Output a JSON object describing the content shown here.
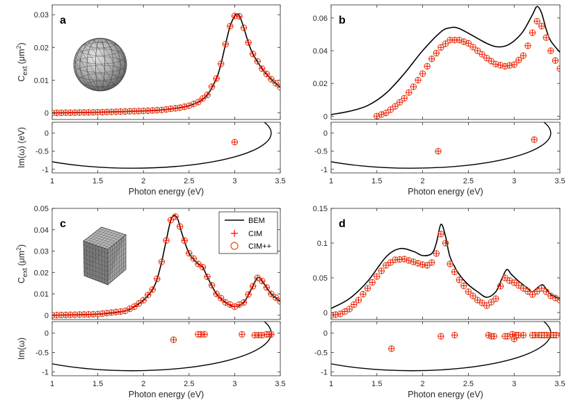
{
  "chart_data": [
    {
      "panel_label": "a",
      "type": "scatter",
      "xlim": [
        1,
        3.5
      ],
      "x_ticks": [
        "1",
        "1.5",
        "2",
        "2.5",
        "3",
        "3.5"
      ],
      "xlabel": "Photon energy (eV)",
      "top": {
        "ylabel_main": "C",
        "ylabel_sub": "ext",
        "ylabel_unit": "(μm",
        "ylabel_exp": "2",
        "ylabel_close": ")",
        "ylim": [
          -0.002,
          0.033
        ],
        "y_ticks": [
          0,
          0.01,
          0.02,
          0.03
        ],
        "y_tick_labels": [
          "0",
          "0.01",
          "0.02",
          "0.03"
        ],
        "bem_curve": [
          [
            1.0,
            0.0
          ],
          [
            1.5,
            0.0002
          ],
          [
            2.0,
            0.0006
          ],
          [
            2.2,
            0.0009
          ],
          [
            2.4,
            0.0016
          ],
          [
            2.5,
            0.0022
          ],
          [
            2.6,
            0.0033
          ],
          [
            2.7,
            0.0055
          ],
          [
            2.8,
            0.0105
          ],
          [
            2.85,
            0.015
          ],
          [
            2.9,
            0.021
          ],
          [
            2.95,
            0.0265
          ],
          [
            3.0,
            0.0296
          ],
          [
            3.03,
            0.0302
          ],
          [
            3.06,
            0.0292
          ],
          [
            3.1,
            0.026
          ],
          [
            3.15,
            0.0215
          ],
          [
            3.2,
            0.018
          ],
          [
            3.3,
            0.0135
          ],
          [
            3.4,
            0.0103
          ],
          [
            3.5,
            0.0078
          ]
        ],
        "cim_x_range": [
          1.0,
          3.5
        ],
        "cim_step": 0.05,
        "cim_matches_bem": true
      },
      "bottom": {
        "ylabel": "Im(ω) (eV)",
        "ylim": [
          -1.1,
          0.3
        ],
        "y_ticks": [
          0,
          -0.5,
          -1
        ],
        "y_tick_labels": [
          "0",
          "-0.5",
          "-1"
        ],
        "contour": {
          "center": [
            1.88,
            0
          ],
          "radii": [
            1.52,
            0.97
          ]
        },
        "poles": [
          [
            3.0,
            -0.25
          ]
        ]
      },
      "inset": "sphere"
    },
    {
      "panel_label": "b",
      "type": "line",
      "xlim": [
        1,
        3.5
      ],
      "x_ticks": [
        "1",
        "1.5",
        "2",
        "2.5",
        "3",
        "3.5"
      ],
      "xlabel": "Photon energy (eV)",
      "top": {
        "ylim": [
          -0.002,
          0.068
        ],
        "y_ticks": [
          0,
          0.02,
          0.04,
          0.06
        ],
        "y_tick_labels": [
          "0",
          "0.02",
          "0.04",
          "0.06"
        ],
        "bem_curve": [
          [
            1.0,
            0.001
          ],
          [
            1.2,
            0.003
          ],
          [
            1.4,
            0.0065
          ],
          [
            1.6,
            0.014
          ],
          [
            1.8,
            0.026
          ],
          [
            2.0,
            0.04
          ],
          [
            2.2,
            0.0515
          ],
          [
            2.3,
            0.054
          ],
          [
            2.4,
            0.0535
          ],
          [
            2.6,
            0.0475
          ],
          [
            2.7,
            0.0445
          ],
          [
            2.8,
            0.0425
          ],
          [
            2.9,
            0.0428
          ],
          [
            3.0,
            0.046
          ],
          [
            3.1,
            0.052
          ],
          [
            3.2,
            0.062
          ],
          [
            3.25,
            0.067
          ],
          [
            3.3,
            0.063
          ],
          [
            3.35,
            0.053
          ],
          [
            3.4,
            0.046
          ],
          [
            3.5,
            0.039
          ]
        ],
        "cim_curve": [
          [
            1.5,
            0.0
          ],
          [
            1.6,
            0.002
          ],
          [
            1.7,
            0.006
          ],
          [
            1.8,
            0.011
          ],
          [
            1.9,
            0.018
          ],
          [
            2.0,
            0.026
          ],
          [
            2.1,
            0.035
          ],
          [
            2.2,
            0.042
          ],
          [
            2.3,
            0.0465
          ],
          [
            2.4,
            0.0465
          ],
          [
            2.5,
            0.0445
          ],
          [
            2.6,
            0.04
          ],
          [
            2.7,
            0.0355
          ],
          [
            2.8,
            0.0318
          ],
          [
            2.9,
            0.0305
          ],
          [
            3.0,
            0.0315
          ],
          [
            3.1,
            0.037
          ],
          [
            3.15,
            0.043
          ],
          [
            3.2,
            0.051
          ],
          [
            3.25,
            0.058
          ],
          [
            3.3,
            0.055
          ],
          [
            3.35,
            0.048
          ],
          [
            3.4,
            0.04
          ],
          [
            3.45,
            0.034
          ],
          [
            3.5,
            0.029
          ]
        ],
        "cim_x_range": [
          1.5,
          3.5
        ],
        "cim_step": 0.05
      },
      "bottom": {
        "ylim": [
          -1.1,
          0.3
        ],
        "y_ticks": [
          0,
          -0.5,
          -1
        ],
        "y_tick_labels": [
          "0",
          "-0.5",
          "-1"
        ],
        "contour": {
          "center": [
            1.88,
            0
          ],
          "radii": [
            1.52,
            0.97
          ]
        },
        "poles": [
          [
            2.17,
            -0.5
          ],
          [
            3.22,
            -0.18
          ]
        ]
      }
    },
    {
      "panel_label": "c",
      "type": "scatter",
      "xlim": [
        1,
        3.5
      ],
      "x_ticks": [
        "1",
        "1.5",
        "2",
        "2.5",
        "3",
        "3.5"
      ],
      "xlabel": "Photon energy (eV)",
      "top": {
        "ylabel_main": "C",
        "ylabel_sub": "ext",
        "ylabel_unit": "(μm",
        "ylabel_exp": "2",
        "ylabel_close": ")",
        "ylim": [
          -0.002,
          0.05
        ],
        "y_ticks": [
          0,
          0.01,
          0.02,
          0.03,
          0.04,
          0.05
        ],
        "y_tick_labels": [
          "0",
          "0.01",
          "0.02",
          "0.03",
          "0.04",
          "0.05"
        ],
        "bem_curve": [
          [
            1.0,
            0.0
          ],
          [
            1.5,
            0.0005
          ],
          [
            1.8,
            0.002
          ],
          [
            1.9,
            0.004
          ],
          [
            2.0,
            0.007
          ],
          [
            2.1,
            0.012
          ],
          [
            2.15,
            0.017
          ],
          [
            2.2,
            0.025
          ],
          [
            2.25,
            0.035
          ],
          [
            2.3,
            0.0445
          ],
          [
            2.34,
            0.0467
          ],
          [
            2.38,
            0.0445
          ],
          [
            2.42,
            0.0385
          ],
          [
            2.5,
            0.029
          ],
          [
            2.6,
            0.024
          ],
          [
            2.65,
            0.0225
          ],
          [
            2.7,
            0.018
          ],
          [
            2.8,
            0.01
          ],
          [
            2.9,
            0.006
          ],
          [
            3.0,
            0.004
          ],
          [
            3.1,
            0.006
          ],
          [
            3.18,
            0.012
          ],
          [
            3.25,
            0.0175
          ],
          [
            3.3,
            0.016
          ],
          [
            3.4,
            0.01
          ],
          [
            3.5,
            0.0065
          ]
        ],
        "cim_x_range": [
          1.0,
          3.5
        ],
        "cim_step": 0.05,
        "cim_matches_bem": true
      },
      "bottom": {
        "ylabel": "Im(ω)",
        "ylim": [
          -1.1,
          0.3
        ],
        "y_ticks": [
          0,
          -0.5,
          -1
        ],
        "y_tick_labels": [
          "0",
          "-0.5",
          "-1"
        ],
        "contour": {
          "center": [
            1.88,
            0
          ],
          "radii": [
            1.52,
            0.97
          ]
        },
        "poles": [
          [
            2.33,
            -0.17
          ],
          [
            2.6,
            -0.03
          ],
          [
            2.63,
            -0.03
          ],
          [
            2.67,
            -0.03
          ],
          [
            3.08,
            -0.03
          ],
          [
            3.22,
            -0.05
          ],
          [
            3.26,
            -0.05
          ],
          [
            3.3,
            -0.05
          ],
          [
            3.35,
            -0.03
          ],
          [
            3.38,
            -0.03
          ],
          [
            3.4,
            -0.03
          ]
        ]
      },
      "legend": {
        "entries": [
          "BEM",
          "CIM",
          "CIM++"
        ],
        "position": "top-right"
      },
      "inset": "cube"
    },
    {
      "panel_label": "d",
      "type": "line",
      "xlim": [
        1,
        3.5
      ],
      "x_ticks": [
        "1",
        "1.5",
        "2",
        "2.5",
        "3",
        "3.5"
      ],
      "xlabel": "Photon energy (eV)",
      "top": {
        "ylim": [
          -0.01,
          0.15
        ],
        "y_ticks": [
          0,
          0.05,
          0.1,
          0.15
        ],
        "y_tick_labels": [
          "0",
          "0.05",
          "0.1",
          "0.15"
        ],
        "bem_curve": [
          [
            1.0,
            0.006
          ],
          [
            1.2,
            0.02
          ],
          [
            1.4,
            0.045
          ],
          [
            1.6,
            0.08
          ],
          [
            1.75,
            0.092
          ],
          [
            1.9,
            0.088
          ],
          [
            2.0,
            0.082
          ],
          [
            2.1,
            0.085
          ],
          [
            2.15,
            0.1
          ],
          [
            2.2,
            0.127
          ],
          [
            2.25,
            0.11
          ],
          [
            2.3,
            0.08
          ],
          [
            2.4,
            0.055
          ],
          [
            2.5,
            0.04
          ],
          [
            2.6,
            0.03
          ],
          [
            2.7,
            0.022
          ],
          [
            2.8,
            0.03
          ],
          [
            2.87,
            0.05
          ],
          [
            2.92,
            0.062
          ],
          [
            2.97,
            0.055
          ],
          [
            3.05,
            0.045
          ],
          [
            3.15,
            0.035
          ],
          [
            3.2,
            0.03
          ],
          [
            3.3,
            0.04
          ],
          [
            3.35,
            0.034
          ],
          [
            3.4,
            0.026
          ],
          [
            3.5,
            0.02
          ]
        ],
        "cim_curve": [
          [
            1.0,
            -0.004
          ],
          [
            1.1,
            -0.002
          ],
          [
            1.2,
            0.005
          ],
          [
            1.3,
            0.018
          ],
          [
            1.4,
            0.035
          ],
          [
            1.5,
            0.052
          ],
          [
            1.6,
            0.068
          ],
          [
            1.7,
            0.076
          ],
          [
            1.8,
            0.077
          ],
          [
            1.9,
            0.073
          ],
          [
            2.0,
            0.069
          ],
          [
            2.05,
            0.068
          ],
          [
            2.1,
            0.072
          ],
          [
            2.15,
            0.085
          ],
          [
            2.2,
            0.113
          ],
          [
            2.25,
            0.1
          ],
          [
            2.3,
            0.07
          ],
          [
            2.4,
            0.047
          ],
          [
            2.5,
            0.03
          ],
          [
            2.6,
            0.018
          ],
          [
            2.7,
            0.01
          ],
          [
            2.8,
            0.02
          ],
          [
            2.85,
            0.038
          ],
          [
            2.9,
            0.05
          ],
          [
            2.95,
            0.046
          ],
          [
            3.0,
            0.043
          ],
          [
            3.1,
            0.035
          ],
          [
            3.2,
            0.026
          ],
          [
            3.3,
            0.035
          ],
          [
            3.35,
            0.03
          ],
          [
            3.4,
            0.024
          ],
          [
            3.5,
            0.018
          ]
        ],
        "cim_x_range": [
          1.0,
          3.5
        ],
        "cim_step": 0.05
      },
      "bottom": {
        "ylim": [
          -1.1,
          0.3
        ],
        "y_ticks": [
          0,
          -0.5,
          -1
        ],
        "y_tick_labels": [
          "0",
          "-0.5",
          "-1"
        ],
        "contour": {
          "center": [
            1.88,
            0
          ],
          "radii": [
            1.52,
            0.97
          ]
        },
        "poles": [
          [
            1.66,
            -0.4
          ],
          [
            2.2,
            -0.08
          ],
          [
            2.35,
            -0.05
          ],
          [
            2.72,
            -0.05
          ],
          [
            2.75,
            -0.08
          ],
          [
            2.78,
            -0.08
          ],
          [
            2.9,
            -0.08
          ],
          [
            2.93,
            -0.08
          ],
          [
            2.98,
            -0.03
          ],
          [
            3.0,
            -0.15
          ],
          [
            3.02,
            -0.05
          ],
          [
            3.05,
            -0.05
          ],
          [
            3.1,
            -0.05
          ],
          [
            3.2,
            -0.05
          ],
          [
            3.23,
            -0.05
          ],
          [
            3.27,
            -0.05
          ],
          [
            3.3,
            -0.05
          ],
          [
            3.33,
            -0.05
          ],
          [
            3.36,
            -0.05
          ],
          [
            3.4,
            -0.05
          ],
          [
            3.43,
            -0.05
          ],
          [
            3.46,
            -0.05
          ]
        ]
      }
    }
  ],
  "colors": {
    "bem": "#000000",
    "cim": "#ff0000",
    "cimpp": "#d95319",
    "axis": "#262626"
  }
}
